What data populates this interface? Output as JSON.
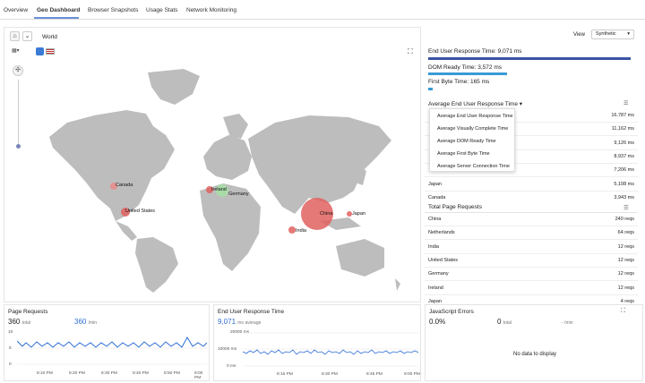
{
  "tabs": [
    {
      "label": "Overview"
    },
    {
      "label": "Geo Dashboard"
    },
    {
      "label": "Browser Snapshots"
    },
    {
      "label": "Usage Stats"
    },
    {
      "label": "Network Monitoring"
    }
  ],
  "map": {
    "breadcrumb": "World",
    "cities": [
      {
        "name": "Canada"
      },
      {
        "name": "United States"
      },
      {
        "name": "Ireland"
      },
      {
        "name": "Germany"
      },
      {
        "name": "China"
      },
      {
        "name": "Japan"
      },
      {
        "name": "India"
      }
    ]
  },
  "view": {
    "label": "View",
    "selected": "Synthetic"
  },
  "metrics": [
    {
      "label": "End User Response Time: 9,071 ms",
      "fraction": 1.0,
      "color": "#3a53a4"
    },
    {
      "label": "DOM Ready Time: 3,572 ms",
      "fraction": 0.39,
      "color": "#3a9bd5"
    },
    {
      "label": "First Byte Time: 165 ms",
      "fraction": 0.02,
      "color": "#3a9bd5"
    }
  ],
  "avg_section": {
    "title": "Average End User Response Time",
    "rows": [
      {
        "name": "",
        "value": "16,787 ms"
      },
      {
        "name": "",
        "value": "11,162 ms"
      },
      {
        "name": "",
        "value": "9,126 ms"
      },
      {
        "name": "",
        "value": "8,937 ms"
      },
      {
        "name": "",
        "value": "7,206 ms"
      },
      {
        "name": "Japan",
        "value": "5,108 ms"
      },
      {
        "name": "Canada",
        "value": "3,943 ms"
      }
    ]
  },
  "dropdown": {
    "items": [
      "Average End User Response Time",
      "Average Visually Complete Time",
      "Average DOM Ready Time",
      "Average First Byte Time",
      "Average Server Connection Time"
    ]
  },
  "total_section": {
    "title": "Total Page Requests",
    "rows": [
      {
        "name": "China",
        "value": "240 reqs"
      },
      {
        "name": "Netherlands",
        "value": "64 reqs"
      },
      {
        "name": "India",
        "value": "12 reqs"
      },
      {
        "name": "United States",
        "value": "12 reqs"
      },
      {
        "name": "Germany",
        "value": "12 reqs"
      },
      {
        "name": "Ireland",
        "value": "12 reqs"
      },
      {
        "name": "Japan",
        "value": "4 reqs"
      }
    ]
  },
  "page_requests": {
    "title": "Page Requests",
    "total_value": "360",
    "total_unit": "total",
    "rate_value": "360",
    "rate_unit": "/min",
    "y_ticks": [
      "10",
      "5",
      "0"
    ],
    "x_ticks": [
      "8:10 PM",
      "8:20 PM",
      "8:30 PM",
      "8:40 PM",
      "8:50 PM",
      "9:00 PM"
    ]
  },
  "eurt": {
    "title": "End User Response Time",
    "value": "9,071",
    "unit": "ms average",
    "y_ticks": [
      "20000 ms",
      "10000 ms",
      "0 ms"
    ],
    "x_ticks": [
      "8:15 PM",
      "8:30 PM",
      "8:45 PM",
      "9:00 PM"
    ]
  },
  "js_errors": {
    "title": "JavaScript Errors",
    "pct": "0.0%",
    "total_value": "0",
    "total_unit": "total",
    "rate": "- /min",
    "empty": "No data to display"
  }
}
